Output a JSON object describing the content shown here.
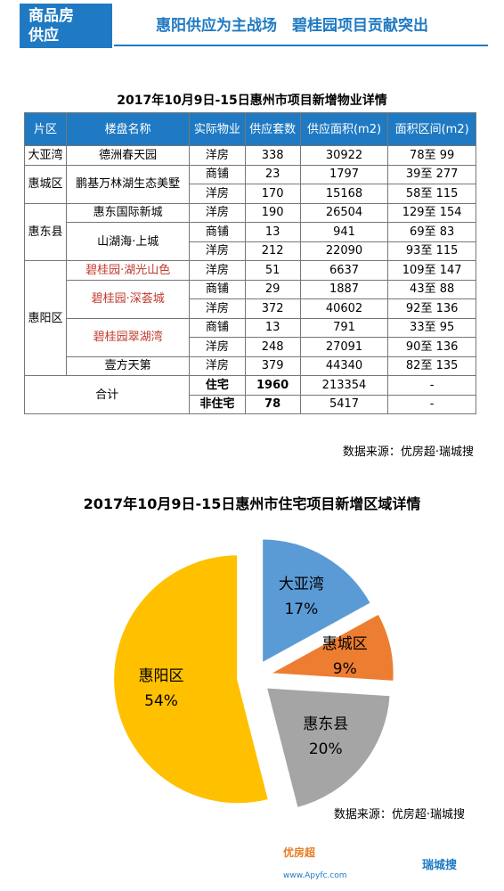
{
  "header": {
    "tag": [
      "商品房",
      "供应"
    ],
    "headline": "惠阳供应为主战场　碧桂园项目贡献突出"
  },
  "table": {
    "title": "2017年10月9日-15日惠州市项目新增物业详情",
    "columns": [
      "片区",
      "楼盘名称",
      "实际物业",
      "供应套数",
      "供应面积(m2)",
      "面积区间(m2)"
    ],
    "groups": [
      {
        "district": "大亚湾",
        "projects": [
          {
            "name": "德洲春天园",
            "color": "#000000",
            "rows": [
              [
                "洋房",
                338,
                30922,
                "78至 99"
              ]
            ]
          }
        ]
      },
      {
        "district": "惠城区",
        "projects": [
          {
            "name": "鹏基万林湖生态美墅",
            "color": "#000000",
            "rows": [
              [
                "商铺",
                23,
                1797,
                "39至 277"
              ],
              [
                "洋房",
                170,
                15168,
                "58至 115"
              ]
            ]
          }
        ]
      },
      {
        "district": "惠东县",
        "projects": [
          {
            "name": "惠东国际新城",
            "color": "#000000",
            "rows": [
              [
                "洋房",
                190,
                26504,
                "129至 154"
              ]
            ]
          },
          {
            "name": "山湖海·上城",
            "color": "#000000",
            "rows": [
              [
                "商铺",
                13,
                941,
                "69至 83"
              ],
              [
                "洋房",
                212,
                22090,
                "93至 115"
              ]
            ]
          }
        ]
      },
      {
        "district": "惠阳区",
        "projects": [
          {
            "name": "碧桂园·湖光山色",
            "color": "#c0392b",
            "rows": [
              [
                "洋房",
                51,
                6637,
                "109至 147"
              ]
            ]
          },
          {
            "name": "碧桂园·深荟城",
            "color": "#c0392b",
            "rows": [
              [
                "商铺",
                29,
                1887,
                "43至 88"
              ],
              [
                "洋房",
                372,
                40602,
                "92至 136"
              ]
            ]
          },
          {
            "name": "碧桂园翠湖湾",
            "color": "#c0392b",
            "rows": [
              [
                "商铺",
                13,
                791,
                "33至 95"
              ],
              [
                "洋房",
                248,
                27091,
                "90至 136"
              ]
            ]
          },
          {
            "name": "壹方天第",
            "color": "#000000",
            "rows": [
              [
                "洋房",
                379,
                44340,
                "82至 135"
              ]
            ]
          }
        ]
      }
    ],
    "total": {
      "label": "合计",
      "rows": [
        [
          "住宅",
          1960,
          213354,
          "-"
        ],
        [
          "非住宅",
          78,
          5417,
          "-"
        ]
      ]
    },
    "source": "数据来源：优房超·瑞城搜"
  },
  "chart_data": {
    "type": "pie",
    "title": "2017年10月9日-15日惠州市住宅项目新增区域详情",
    "categories": [
      "大亚湾",
      "惠城区",
      "惠东县",
      "惠阳区"
    ],
    "values": [
      17,
      9,
      20,
      54
    ],
    "value_labels": [
      "17%",
      "9%",
      "20%",
      "54%"
    ],
    "colors": [
      "#5b9bd5",
      "#ed7d31",
      "#a5a5a5",
      "#ffc000"
    ],
    "start_angle": -90,
    "direction": "clockwise"
  },
  "source": "数据来源：优房超·瑞城搜",
  "footer": {
    "brand1": "优房超",
    "brand2": "瑞城搜",
    "url": "www.Apyfc.com"
  }
}
